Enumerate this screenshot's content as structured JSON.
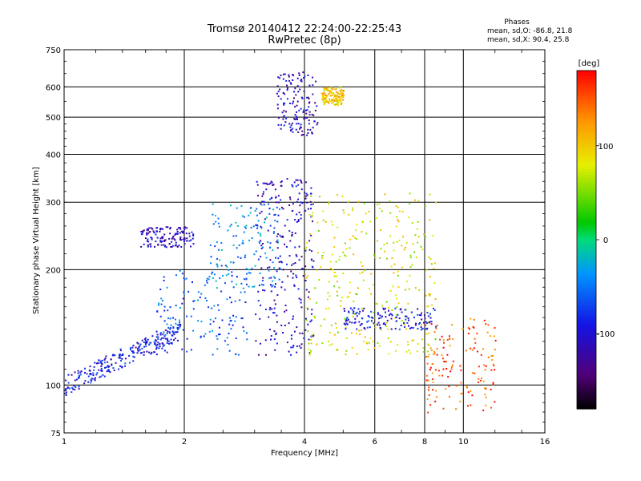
{
  "chart_data": {
    "type": "scatter",
    "title": "Tromsø 20140412 22:24:00-22:25:43",
    "subtitle": "RwPretec (8p)",
    "xlabel": "Frequency [MHz]",
    "ylabel": "Stationary phase Virtual Height [km]",
    "x_scale": "log",
    "y_scale": "log",
    "xlim": [
      1,
      16
    ],
    "ylim": [
      75,
      750
    ],
    "x_ticks": [
      1,
      2,
      4,
      6,
      8,
      10,
      16
    ],
    "y_ticks": [
      75,
      100,
      200,
      300,
      400,
      500,
      600,
      750
    ],
    "grid_x": [
      2,
      4,
      6,
      8,
      10
    ],
    "grid_y": [
      100,
      200,
      300,
      400,
      500,
      600
    ],
    "grid": true,
    "info": {
      "heading": "Phases",
      "line1": "mean, sd,O: -86.8, 21.8",
      "line2": "mean, sd,X:  90.4, 25.8"
    },
    "colorbar": {
      "label": "[deg]",
      "range": [
        -180,
        180
      ],
      "ticks": [
        100,
        0,
        -100
      ],
      "tick_labels": [
        "100",
        "0",
        "-100"
      ],
      "colormap": "rainbow (black-purple-blue-cyan-green-yellow-orange-red)"
    },
    "echo_groups": [
      {
        "freq": [
          1.0,
          1.95
        ],
        "height": [
          100,
          150
        ],
        "phase": -90,
        "note": "O-trace lower branch, blue"
      },
      {
        "freq": [
          1.7,
          2.9
        ],
        "height": [
          120,
          200
        ],
        "phase": -60,
        "note": "cyan/blue cluster"
      },
      {
        "freq": [
          1.55,
          2.1
        ],
        "height": [
          230,
          260
        ],
        "phase": -110,
        "note": "blue band"
      },
      {
        "freq": [
          2.3,
          3.5
        ],
        "height": [
          180,
          300
        ],
        "phase": -40,
        "note": "cyan patch"
      },
      {
        "freq": [
          3.0,
          4.2
        ],
        "height": [
          120,
          350
        ],
        "phase": -110,
        "note": "dense blue cusp"
      },
      {
        "freq": [
          3.4,
          4.3
        ],
        "height": [
          450,
          660
        ],
        "phase": -110,
        "note": "upper blue clusters"
      },
      {
        "freq": [
          4.4,
          5.0
        ],
        "height": [
          540,
          600
        ],
        "phase": 100,
        "note": "yellow-green cluster"
      },
      {
        "freq": [
          4.0,
          8.5
        ],
        "height": [
          120,
          320
        ],
        "phase": 80,
        "note": "X-trace, yellow/green scatter"
      },
      {
        "freq": [
          5.0,
          8.5
        ],
        "height": [
          140,
          160
        ],
        "phase": -95,
        "note": "blue X-related trace"
      },
      {
        "freq": [
          8.0,
          12.0
        ],
        "height": [
          85,
          150
        ],
        "phase": 150,
        "note": "sparse orange/red"
      }
    ]
  }
}
